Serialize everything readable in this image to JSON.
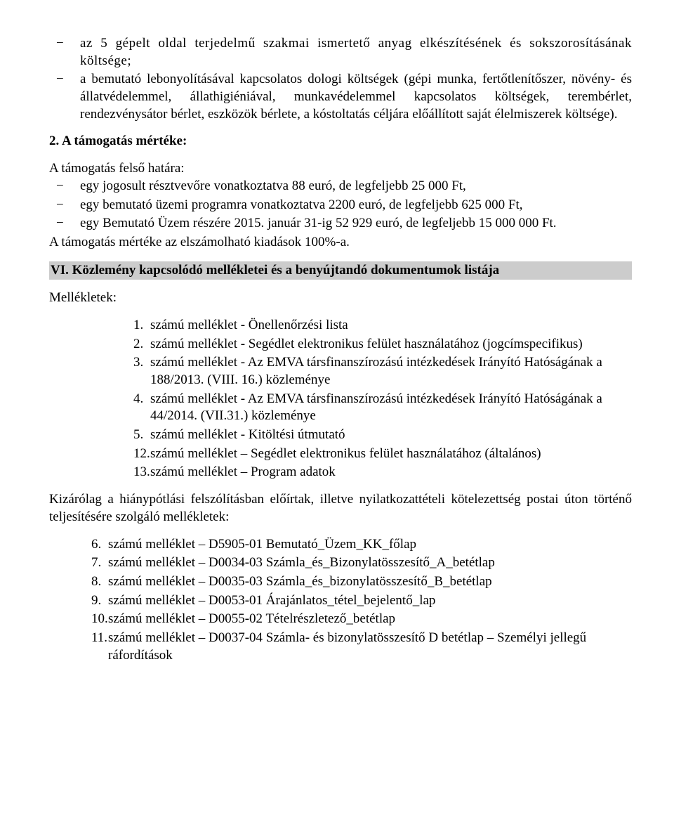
{
  "top_items": [
    "az 5 gépelt oldal terjedelmű szakmai ismertető anyag elkészítésének és sokszorosításának költsége;",
    "a bemutató lebonyolításával kapcsolatos dologi költségek (gépi munka, fertőtlenítőszer, növény- és állatvédelemmel, állathigiéniával, munkavédelemmel kapcsolatos költségek, terembérlet, rendezvénysátor bérlet, eszközök bérlete, a kóstoltatás céljára előállított saját élelmiszerek költsége)."
  ],
  "sec2_title": "2.  A támogatás mértéke:",
  "limit_label": "A támogatás felső határa:",
  "limit_items": [
    "egy jogosult résztvevőre vonatkoztatva 88 euró, de legfeljebb 25 000 Ft,",
    "egy bemutató üzemi programra vonatkoztatva 2200 euró, de legfeljebb 625 000 Ft,",
    "egy Bemutató Üzem részére 2015. január 31-ig 52 929 euró, de legfeljebb 15 000 000 Ft."
  ],
  "limit_footer": "A támogatás mértéke az elszámolható kiadások 100%-a.",
  "heading_vi": "VI. Közlemény kapcsolódó mellékletei és a benyújtandó dokumentumok listája",
  "mellekletek_label": "Mellékletek:",
  "mell_items": [
    {
      "n": "1.",
      "t": "számú melléklet - Önellenőrzési lista"
    },
    {
      "n": "2.",
      "t": "számú melléklet - Segédlet elektronikus felület használatához (jogcímspecifikus)"
    },
    {
      "n": "3.",
      "t": "számú melléklet - Az EMVA társfinanszírozású intézkedések Irányító Hatóságának a 188/2013. (VIII. 16.) közleménye"
    },
    {
      "n": "4.",
      "t": "számú melléklet - Az EMVA társfinanszírozású intézkedések Irányító Hatóságának a 44/2014. (VII.31.) közleménye"
    },
    {
      "n": "5.",
      "t": "számú melléklet - Kitöltési útmutató"
    },
    {
      "n": "12.",
      "t": "számú melléklet – Segédlet elektronikus felület használatához (általános)"
    },
    {
      "n": "13.",
      "t": "számú melléklet – Program adatok"
    }
  ],
  "middle_para": "Kizárólag a hiánypótlási felszólításban előírtak, illetve nyilatkozattételi kötelezettség postai úton történő teljesítésére szolgáló mellékletek:",
  "mell2_items": [
    {
      "n": "6.",
      "t": "számú melléklet – D5905-01 Bemutató_Üzem_KK_főlap"
    },
    {
      "n": "7.",
      "t": "számú melléklet – D0034-03 Számla_és_Bizonylatösszesítő_A_betétlap"
    },
    {
      "n": "8.",
      "t": "számú melléklet – D0035-03 Számla_és_bizonylatösszesítő_B_betétlap"
    },
    {
      "n": "9.",
      "t": "számú melléklet – D0053-01 Árajánlatos_tétel_bejelentő_lap"
    },
    {
      "n": "10.",
      "t": "számú melléklet – D0055-02 Tételrészletező_betétlap"
    },
    {
      "n": "11.",
      "t": "számú melléklet – D0037-04 Számla- és bizonylatösszesítő D betétlap – Személyi jellegű ráfordítások"
    }
  ]
}
